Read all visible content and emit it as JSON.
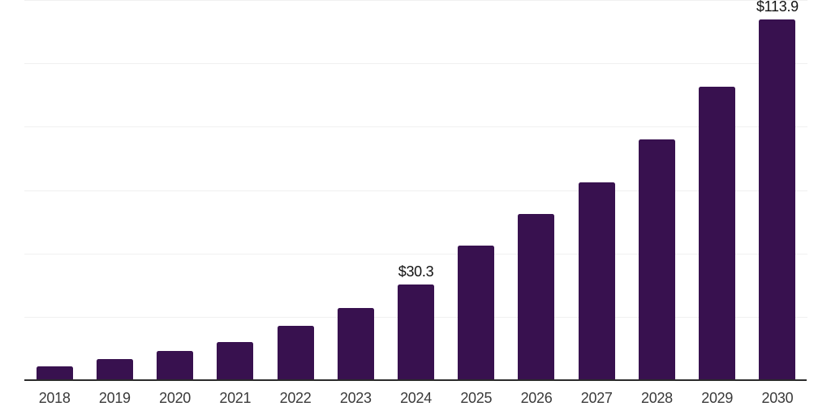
{
  "chart_data": {
    "type": "bar",
    "title": "",
    "xlabel": "",
    "ylabel": "",
    "categories": [
      "2018",
      "2019",
      "2020",
      "2021",
      "2022",
      "2023",
      "2024",
      "2025",
      "2026",
      "2027",
      "2028",
      "2029",
      "2030"
    ],
    "values": [
      4.4,
      6.6,
      9.2,
      12.0,
      17.1,
      22.8,
      30.3,
      42.6,
      52.5,
      62.5,
      76.0,
      92.6,
      113.9
    ],
    "value_labels": {
      "2024": "$30.3",
      "2030": "$113.9"
    },
    "unit_prefix": "$",
    "ylim": [
      0,
      120
    ],
    "gridline_values": [
      20,
      40,
      60,
      80,
      100,
      120
    ],
    "grid": "horizontal-only",
    "y_tick_labels_shown": false,
    "legend": "none",
    "colors": {
      "bar": "#38114f",
      "gridline": "#f0f0f0",
      "axis_line": "#2b2b2b",
      "category_label": "#3a3a3a",
      "value_label": "#121212",
      "background": "#ffffff"
    }
  }
}
